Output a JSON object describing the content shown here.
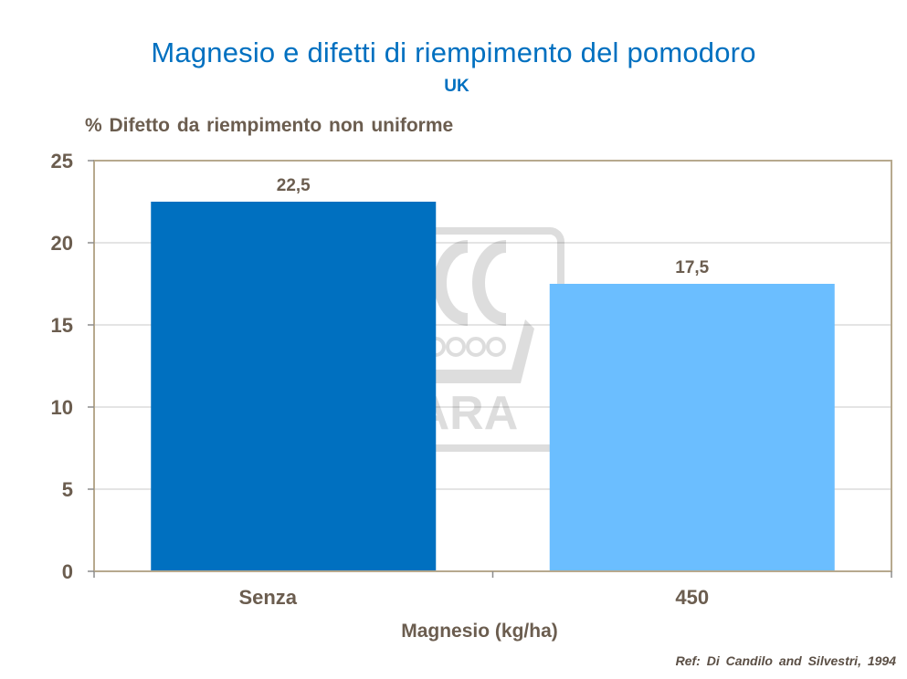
{
  "title": "Magnesio e difetti di riempimento del pomodoro",
  "subtitle": "UK",
  "reference": "Ref: Di Candilo  and  Silvestri,  1994",
  "watermark": "YARA",
  "colors": {
    "title": "#0070C0",
    "axis_text": "#6B5D4F",
    "plot_border": "#B7A98E",
    "bar_senza": "#0070C0",
    "bar_450": "#6BBEFF"
  },
  "chart_data": {
    "type": "bar",
    "title": "Magnesio e difetti di riempimento del pomodoro",
    "subtitle": "UK",
    "xlabel": "Magnesio (kg/ha)",
    "ylabel": "%  Difetto da riempimento  non uniforme",
    "categories": [
      "Senza",
      "450"
    ],
    "values": [
      22.5,
      17.5
    ],
    "value_labels": [
      "22,5",
      "17,5"
    ],
    "ylim": [
      0,
      25
    ],
    "yticks": [
      0,
      5,
      10,
      15,
      20,
      25
    ],
    "grid": true,
    "legend": "none"
  }
}
